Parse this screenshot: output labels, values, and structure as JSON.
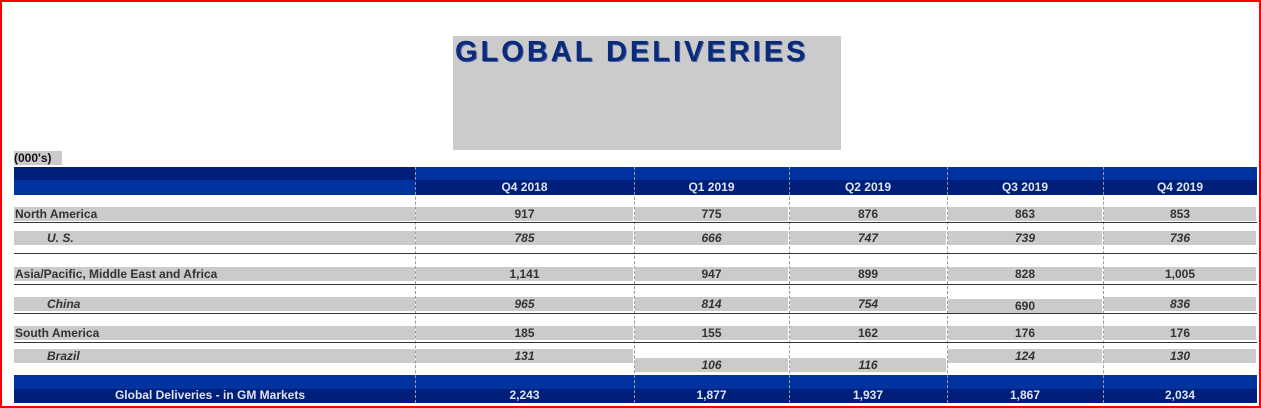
{
  "title": "GLOBAL DELIVERIES",
  "units": "(000's)",
  "columns": [
    "Q4 2018",
    "Q1 2019",
    "Q2 2019",
    "Q3 2019",
    "Q4 2019"
  ],
  "rows": [
    {
      "label": "North America",
      "values": [
        "917",
        "775",
        "876",
        "863",
        "853"
      ],
      "sub": false
    },
    {
      "label": "U. S.",
      "values": [
        "785",
        "666",
        "747",
        "739",
        "736"
      ],
      "sub": true
    },
    {
      "label": "Asia/Pacific, Middle East and Africa",
      "values": [
        "1,141",
        "947",
        "899",
        "828",
        "1,005"
      ],
      "sub": false
    },
    {
      "label": "China",
      "values": [
        "965",
        "814",
        "754",
        "690",
        "836"
      ],
      "sub": true
    },
    {
      "label": "South America",
      "values": [
        "185",
        "155",
        "162",
        "176",
        "176"
      ],
      "sub": false
    },
    {
      "label": "Brazil",
      "values": [
        "131",
        "106",
        "116",
        "124",
        "130"
      ],
      "sub": true
    }
  ],
  "total": {
    "label": "Global Deliveries - in GM Markets",
    "values": [
      "2,243",
      "1,877",
      "1,937",
      "1,867",
      "2,034"
    ]
  },
  "colors": {
    "dark_blue": "#001f7a",
    "bright_blue": "#0033a0",
    "title": "#0a2a7a",
    "band": "#cbcbcb"
  }
}
